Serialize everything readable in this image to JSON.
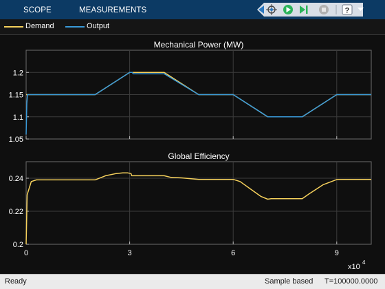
{
  "toolbar": {
    "tabs": [
      "SCOPE",
      "MEASUREMENTS"
    ],
    "icons": [
      "scope-triangle-icon",
      "highlight-signal-icon",
      "run-icon",
      "step-forward-icon",
      "stop-icon",
      "help-icon",
      "collapse-arrow-icon"
    ],
    "colors": {
      "background": "#0c3a64",
      "run": "#2bb35a",
      "step": "#2bb35a",
      "stop": "#9e9e9e"
    }
  },
  "legend": {
    "items": [
      {
        "label": "Demand",
        "color": "#f6d15c"
      },
      {
        "label": "Output",
        "color": "#3a9ad9"
      }
    ]
  },
  "status": {
    "left": "Ready",
    "mode": "Sample based",
    "time": "T=100000.0000"
  },
  "chart_data": [
    {
      "type": "line",
      "title": "Mechanical Power (MW)",
      "xlabel": "",
      "ylabel": "",
      "xlim": [
        0,
        100000
      ],
      "ylim": [
        1.05,
        1.25
      ],
      "y_ticks": [
        "1.05",
        "1.1",
        "1.15",
        "1.2"
      ],
      "x_ticks": [
        0,
        30000,
        60000,
        90000
      ],
      "grid": true,
      "series": [
        {
          "name": "Demand",
          "color": "#f6d15c",
          "x": [
            0,
            20000,
            30000,
            40000,
            50000,
            60000,
            70000,
            80000,
            90000,
            100000
          ],
          "values": [
            1.15,
            1.15,
            1.2,
            1.2,
            1.15,
            1.15,
            1.1,
            1.1,
            1.15,
            1.15
          ]
        },
        {
          "name": "Output",
          "color": "#3a9ad9",
          "x": [
            0,
            200,
            400,
            20000,
            30000,
            30800,
            31000,
            40000,
            50000,
            60000,
            70000,
            80000,
            90000,
            100000
          ],
          "values": [
            1.06,
            1.13,
            1.15,
            1.15,
            1.2,
            1.2,
            1.197,
            1.197,
            1.15,
            1.15,
            1.1,
            1.1,
            1.15,
            1.15
          ]
        }
      ]
    },
    {
      "type": "line",
      "title": "Global Efficiency",
      "xlabel": "",
      "ylabel": "",
      "xlim": [
        0,
        100000
      ],
      "ylim": [
        0.2,
        0.25
      ],
      "y_ticks": [
        "0.2",
        "0.22",
        "0.24"
      ],
      "x_ticks": [
        "0",
        "3",
        "6",
        "9"
      ],
      "x_exponent": "x10",
      "x_exponent_power": "4",
      "grid": true,
      "series": [
        {
          "color": "#f6d15c",
          "x": [
            0,
            300,
            1500,
            3000,
            20000,
            23000,
            26000,
            28000,
            29500,
            30400,
            30600,
            31500,
            40000,
            42000,
            45000,
            50000,
            60000,
            62000,
            65000,
            68000,
            70000,
            71000,
            72000,
            80000,
            82000,
            86000,
            90000,
            92000,
            100000
          ],
          "values": [
            0.2,
            0.23,
            0.238,
            0.239,
            0.239,
            0.2415,
            0.2428,
            0.2432,
            0.2432,
            0.2428,
            0.2415,
            0.2415,
            0.2415,
            0.2405,
            0.2402,
            0.2393,
            0.2393,
            0.238,
            0.2335,
            0.229,
            0.2273,
            0.2276,
            0.2276,
            0.2276,
            0.2305,
            0.236,
            0.2392,
            0.2393,
            0.2393
          ]
        }
      ]
    }
  ]
}
